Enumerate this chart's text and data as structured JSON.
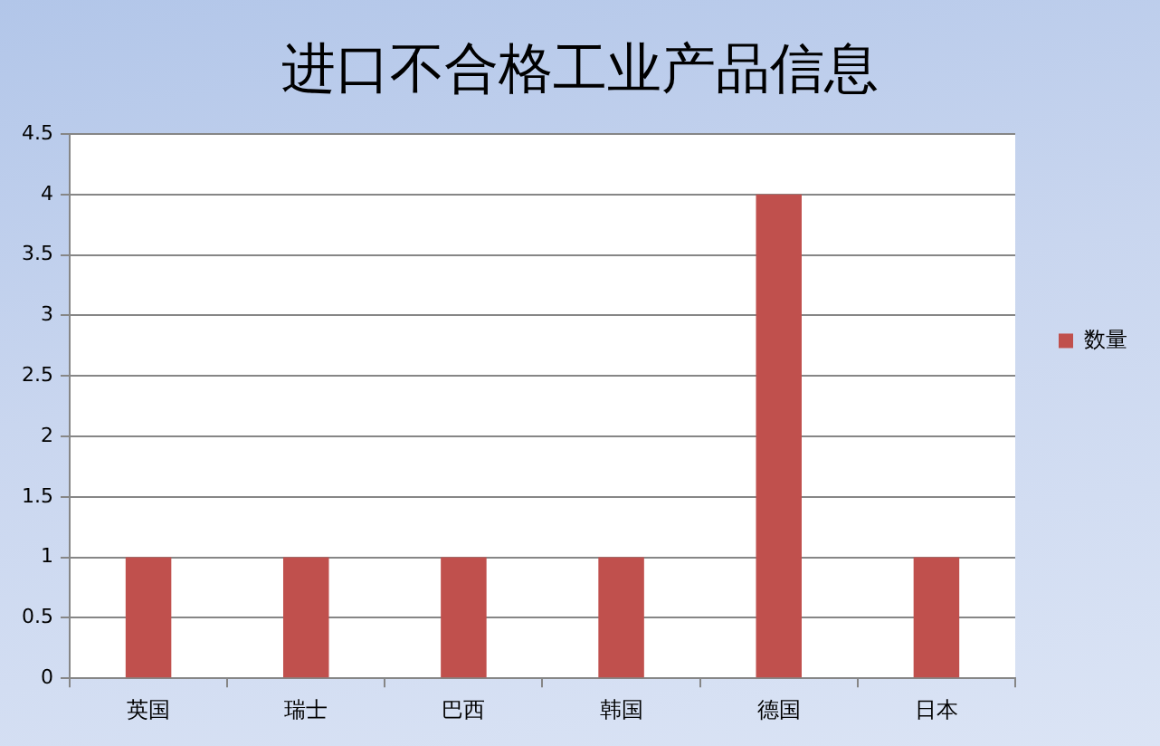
{
  "chart_data": {
    "type": "bar",
    "title": "进口不合格工业产品信息",
    "categories": [
      "英国",
      "瑞士",
      "巴西",
      "韩国",
      "德国",
      "日本"
    ],
    "series": [
      {
        "name": "数量",
        "color": "#c0504d",
        "values": [
          1,
          1,
          1,
          1,
          4,
          1
        ]
      }
    ],
    "ylim": [
      0,
      4.5
    ],
    "yticks": [
      0,
      0.5,
      1,
      1.5,
      2,
      2.5,
      3,
      3.5,
      4,
      4.5
    ],
    "grid": "y",
    "legend": "right"
  }
}
